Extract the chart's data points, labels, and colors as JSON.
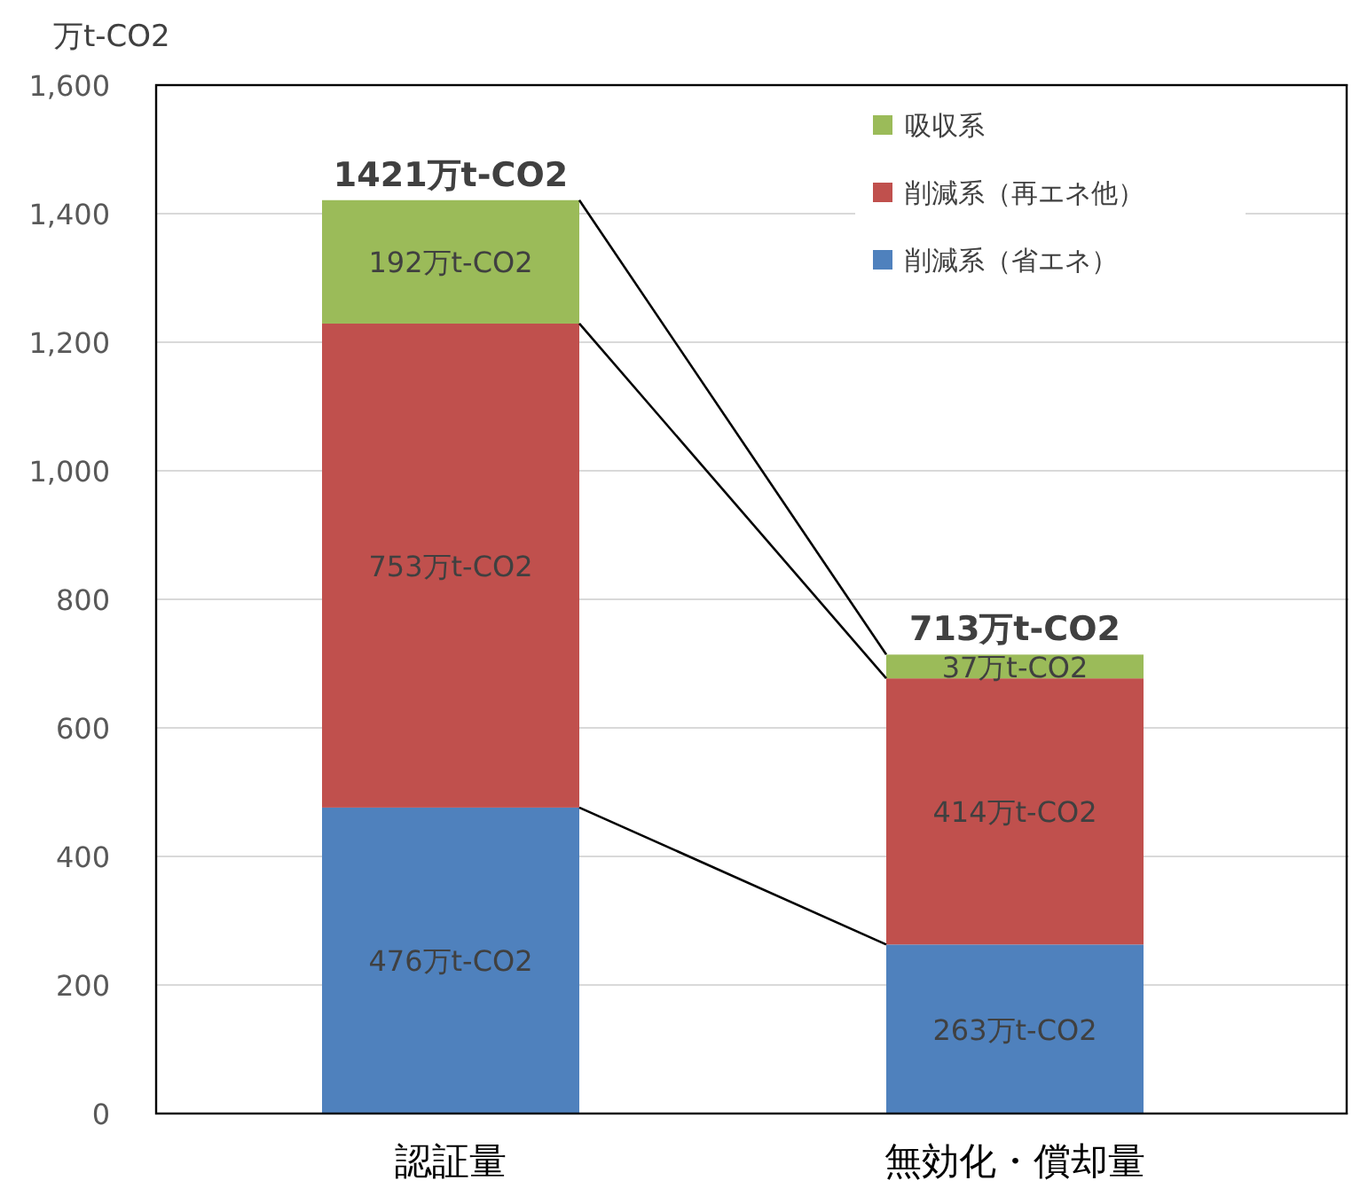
{
  "chart_data": {
    "type": "bar",
    "stacked": true,
    "ylabel": "万t-CO2",
    "categories": [
      "認証量",
      "無効化・償却量"
    ],
    "series": [
      {
        "name": "削減系（省エネ）",
        "color": "#4f81bd",
        "values": [
          476,
          263
        ],
        "value_labels": [
          "476万t-CO2",
          "263万t-CO2"
        ]
      },
      {
        "name": "削減系（再エネ他）",
        "color": "#c0504d",
        "values": [
          753,
          414
        ],
        "value_labels": [
          "753万t-CO2",
          "414万t-CO2"
        ]
      },
      {
        "name": "吸収系",
        "color": "#9bbb59",
        "values": [
          192,
          37
        ],
        "value_labels": [
          "192万t-CO2",
          "37万t-CO2"
        ]
      }
    ],
    "totals": [
      "1421万t-CO2",
      "713万t-CO2"
    ],
    "ylim": [
      0,
      1600
    ],
    "yticks": [
      0,
      {
        "value": 200,
        "label": "200"
      },
      {
        "value": 400,
        "label": "400"
      },
      {
        "value": 600,
        "label": "600"
      },
      {
        "value": 800,
        "label": "800"
      },
      {
        "value": 1000,
        "label": "1,000"
      },
      {
        "value": 1200,
        "label": "1,200"
      },
      {
        "value": 1400,
        "label": "1,400"
      },
      {
        "value": 1600,
        "label": "1,600"
      }
    ],
    "grid": "y",
    "legend": "top right"
  }
}
